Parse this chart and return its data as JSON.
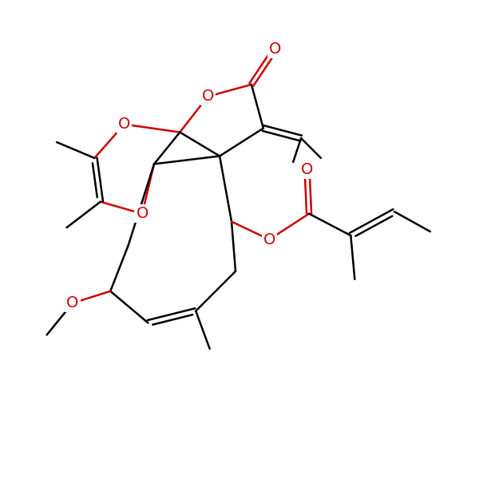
{
  "background": "#ffffff",
  "bond_color": "#000000",
  "oxygen_color": "#cc0000",
  "line_width": 1.8,
  "font_size": 14,
  "figsize": [
    6.0,
    6.0
  ],
  "dpi": 100,
  "xlim": [
    -1,
    11
  ],
  "ylim": [
    -1,
    11
  ]
}
